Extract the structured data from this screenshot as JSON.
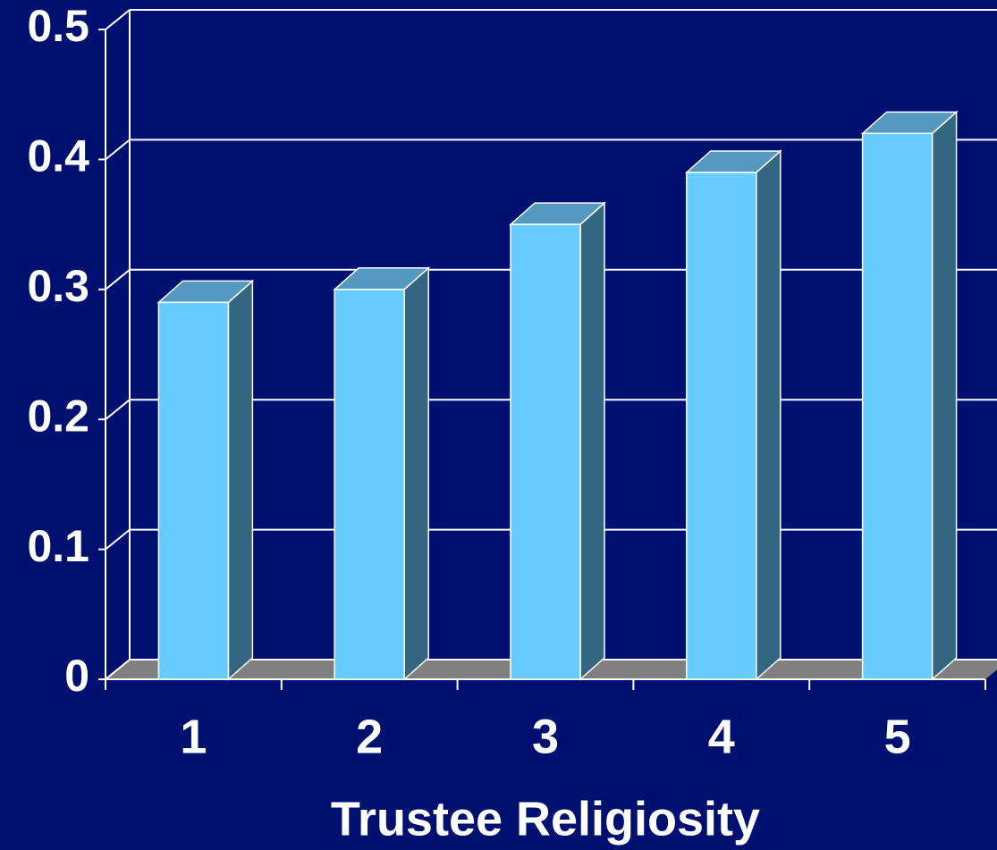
{
  "chart_data": {
    "type": "bar3d",
    "x_label": "Trustee Religiosity",
    "categories": [
      "1",
      "2",
      "3",
      "4",
      "5"
    ],
    "values": [
      0.29,
      0.3,
      0.35,
      0.39,
      0.42
    ],
    "color": "#66ccff",
    "side_color": "#336680",
    "top_color": "#5599c0",
    "floor_color": "#808080",
    "ylim": [
      0,
      0.5
    ],
    "yticks": [
      0,
      0.1,
      0.2,
      0.3,
      0.4,
      0.5
    ],
    "grid": true
  }
}
